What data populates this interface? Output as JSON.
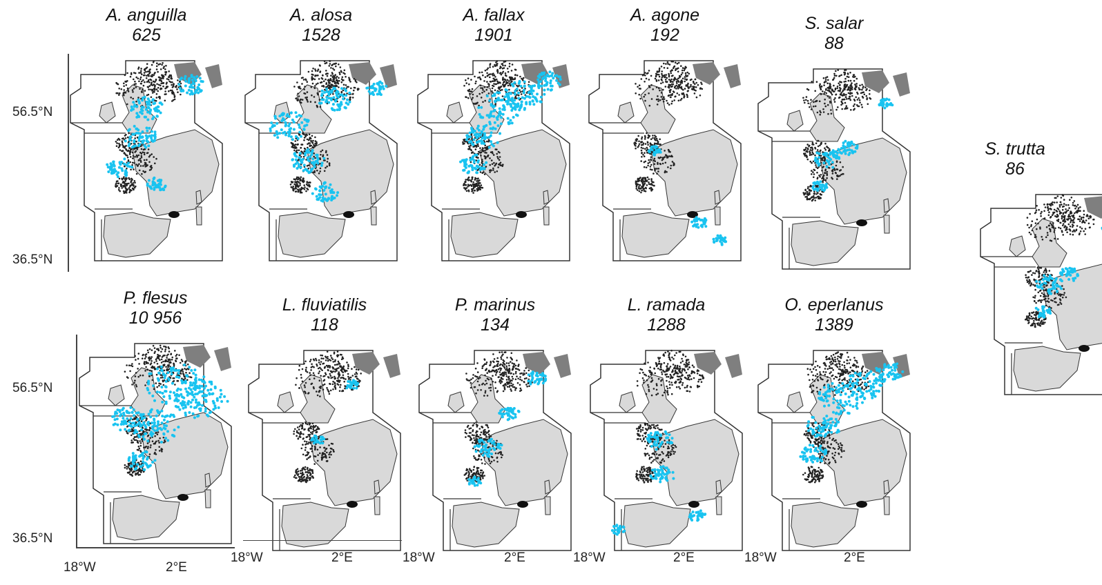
{
  "colors": {
    "land": "#d9d9d9",
    "land_dark": "#7f7f7f",
    "border": "#333333",
    "survey_points": "#222222",
    "occurrence": "#19c3f0",
    "background": "#ffffff"
  },
  "axes": {
    "lat_top": "56.5°N",
    "lat_bottom": "36.5°N",
    "lon_left": "18°W",
    "lon_right": "2°E"
  },
  "panels": [
    {
      "species": "A. anguilla",
      "count": "625",
      "occurrence_zone": "biscay-channel"
    },
    {
      "species": "A. alosa",
      "count": "1528",
      "occurrence_zone": "biscay-wide"
    },
    {
      "species": "A. fallax",
      "count": "1901",
      "occurrence_zone": "channel-northsea"
    },
    {
      "species": "A. agone",
      "count": "192",
      "occurrence_zone": "mediterranean"
    },
    {
      "species": "S. salar",
      "count": "88",
      "occurrence_zone": "channel"
    },
    {
      "species": "S. trutta",
      "count": "86",
      "occurrence_zone": "channel"
    },
    {
      "species": "P. flesus",
      "count": "10 956",
      "occurrence_zone": "northsea-wide"
    },
    {
      "species": "L. fluviatilis",
      "count": "118",
      "occurrence_zone": "sparse"
    },
    {
      "species": "P. marinus",
      "count": "134",
      "occurrence_zone": "scattered"
    },
    {
      "species": "L. ramada",
      "count": "1288",
      "occurrence_zone": "biscay-med"
    },
    {
      "species": "O. eperlanus",
      "count": "1389",
      "occurrence_zone": "channel-northsea"
    }
  ]
}
